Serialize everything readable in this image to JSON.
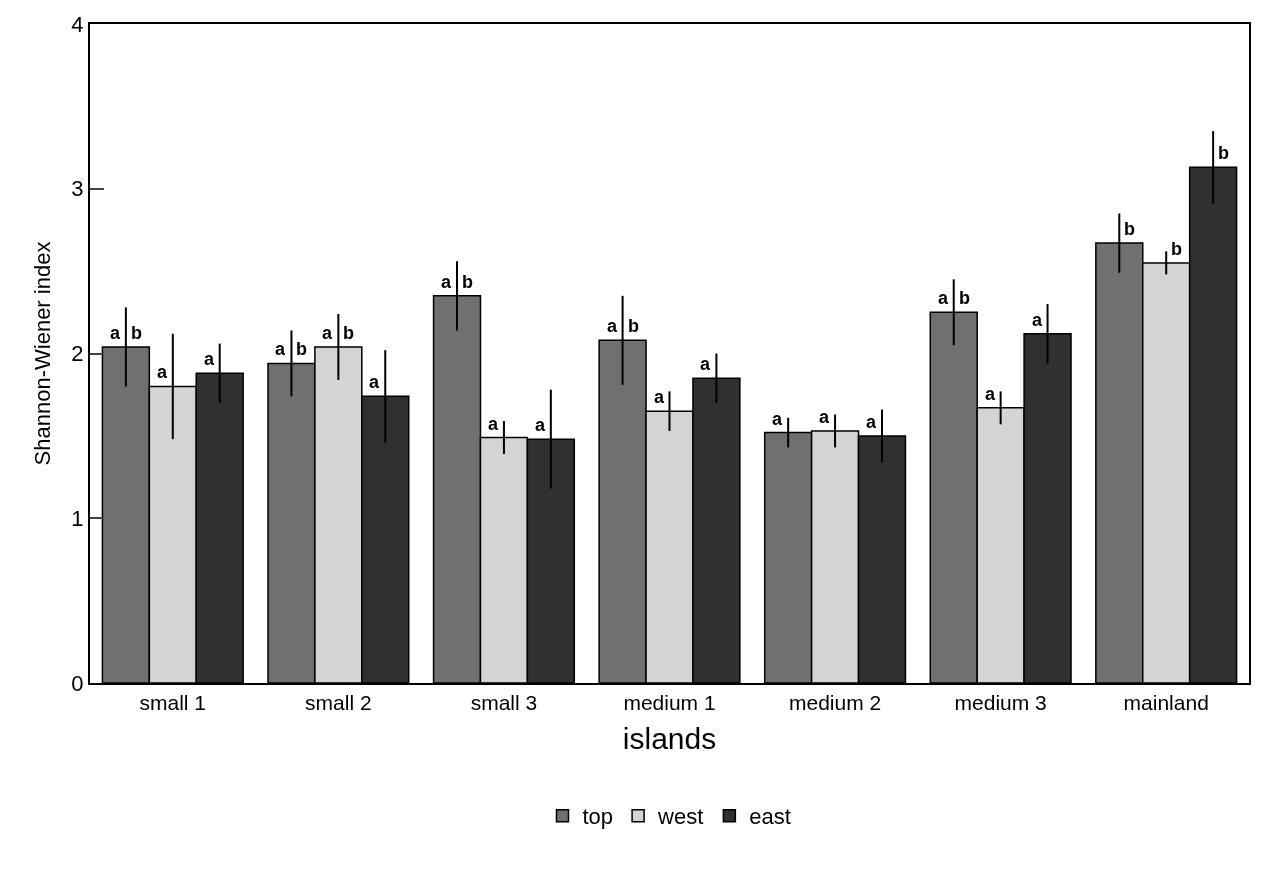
{
  "chart_data": {
    "type": "bar",
    "xlabel": "islands",
    "ylabel": "Shannon-Wiener index",
    "categories": [
      "small 1",
      "small 2",
      "small 3",
      "medium 1",
      "medium 2",
      "medium 3",
      "mainland"
    ],
    "series": [
      {
        "name": "top",
        "color": "#707070",
        "values": [
          2.04,
          1.94,
          2.35,
          2.08,
          1.52,
          2.25,
          2.67
        ],
        "errors": [
          0.24,
          0.2,
          0.21,
          0.27,
          0.09,
          0.2,
          0.18
        ],
        "value_labels": [
          "a b",
          "a b",
          "a b",
          "a b",
          "a",
          "a b",
          "b"
        ]
      },
      {
        "name": "west",
        "color": "#d4d4d4",
        "values": [
          1.8,
          2.04,
          1.49,
          1.65,
          1.53,
          1.67,
          2.55
        ],
        "errors": [
          0.32,
          0.2,
          0.1,
          0.12,
          0.1,
          0.1,
          0.07
        ],
        "value_labels": [
          "a",
          "a b",
          "a",
          "a",
          "a",
          "a",
          "b"
        ]
      },
      {
        "name": "east",
        "color": "#303030",
        "values": [
          1.88,
          1.74,
          1.48,
          1.85,
          1.5,
          2.12,
          3.13
        ],
        "errors": [
          0.18,
          0.28,
          0.3,
          0.15,
          0.16,
          0.18,
          0.22
        ],
        "value_labels": [
          "a",
          "a",
          "a",
          "a",
          "a",
          "a",
          "b"
        ]
      }
    ],
    "ylim": [
      0,
      4
    ],
    "yticks": [
      0,
      1,
      2,
      3,
      4
    ],
    "legend": "bottom"
  }
}
